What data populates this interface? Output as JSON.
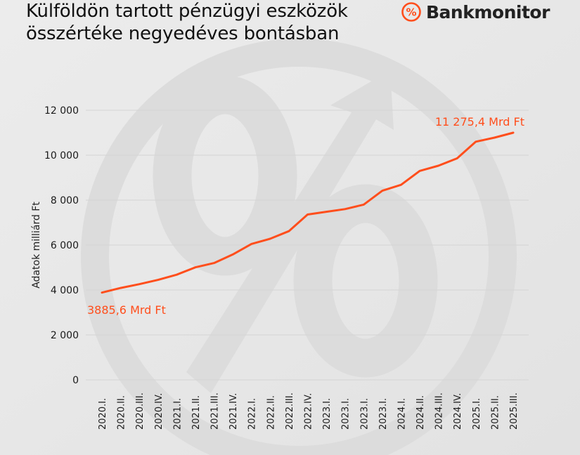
{
  "header": {
    "title_line1": "Külföldön tartott pénzügyi eszközök",
    "title_line2": "összértéke negyedéves bontásban"
  },
  "brand": {
    "logo_icon": "percent-circle-icon",
    "name": "Bankmonitor",
    "accent_color": "#ff4e1c"
  },
  "chart_data": {
    "type": "line",
    "title": "Külföldön tartott pénzügyi eszközök összértéke negyedéves bontásban",
    "xlabel": "",
    "ylabel": "Adatok milliárd Ft",
    "ylim": [
      0,
      12000
    ],
    "yticks": [
      0,
      2000,
      4000,
      6000,
      8000,
      10000,
      12000
    ],
    "ytick_labels": [
      "0",
      "2 000",
      "4 000",
      "6 000",
      "8 000",
      "10 000",
      "12 000"
    ],
    "grid": true,
    "legend": "none",
    "line_color": "#ff4e1c",
    "categories": [
      "2020.I.",
      "2020.II.",
      "2020.III.",
      "2020.IV.",
      "2021.I.",
      "2021.II.",
      "2021.III.",
      "2021.IV.",
      "2022.I.",
      "2022.II.",
      "2022.III.",
      "2022.IV.",
      "2023.I.",
      "2023.I.",
      "2023.I.",
      "2023.I.",
      "2024.I.",
      "2024.II.",
      "2024.III.",
      "2024.IV.",
      "2025.I.",
      "2025.II.",
      "2025.III."
    ],
    "series": [
      {
        "name": "Adatok milliárd Ft",
        "values": [
          3885.6,
          4090,
          4260,
          4450,
          4680,
          5010,
          5200,
          5580,
          6050,
          6280,
          6620,
          7360,
          7480,
          7600,
          7800,
          8420,
          8680,
          9300,
          9530,
          9860,
          10600,
          10780,
          11275.4
        ]
      }
    ],
    "annotations": [
      {
        "text": "3885,6 Mrd Ft",
        "point_index": 0
      },
      {
        "text": "11 275,4 Mrd Ft",
        "point_index": 22
      }
    ]
  }
}
